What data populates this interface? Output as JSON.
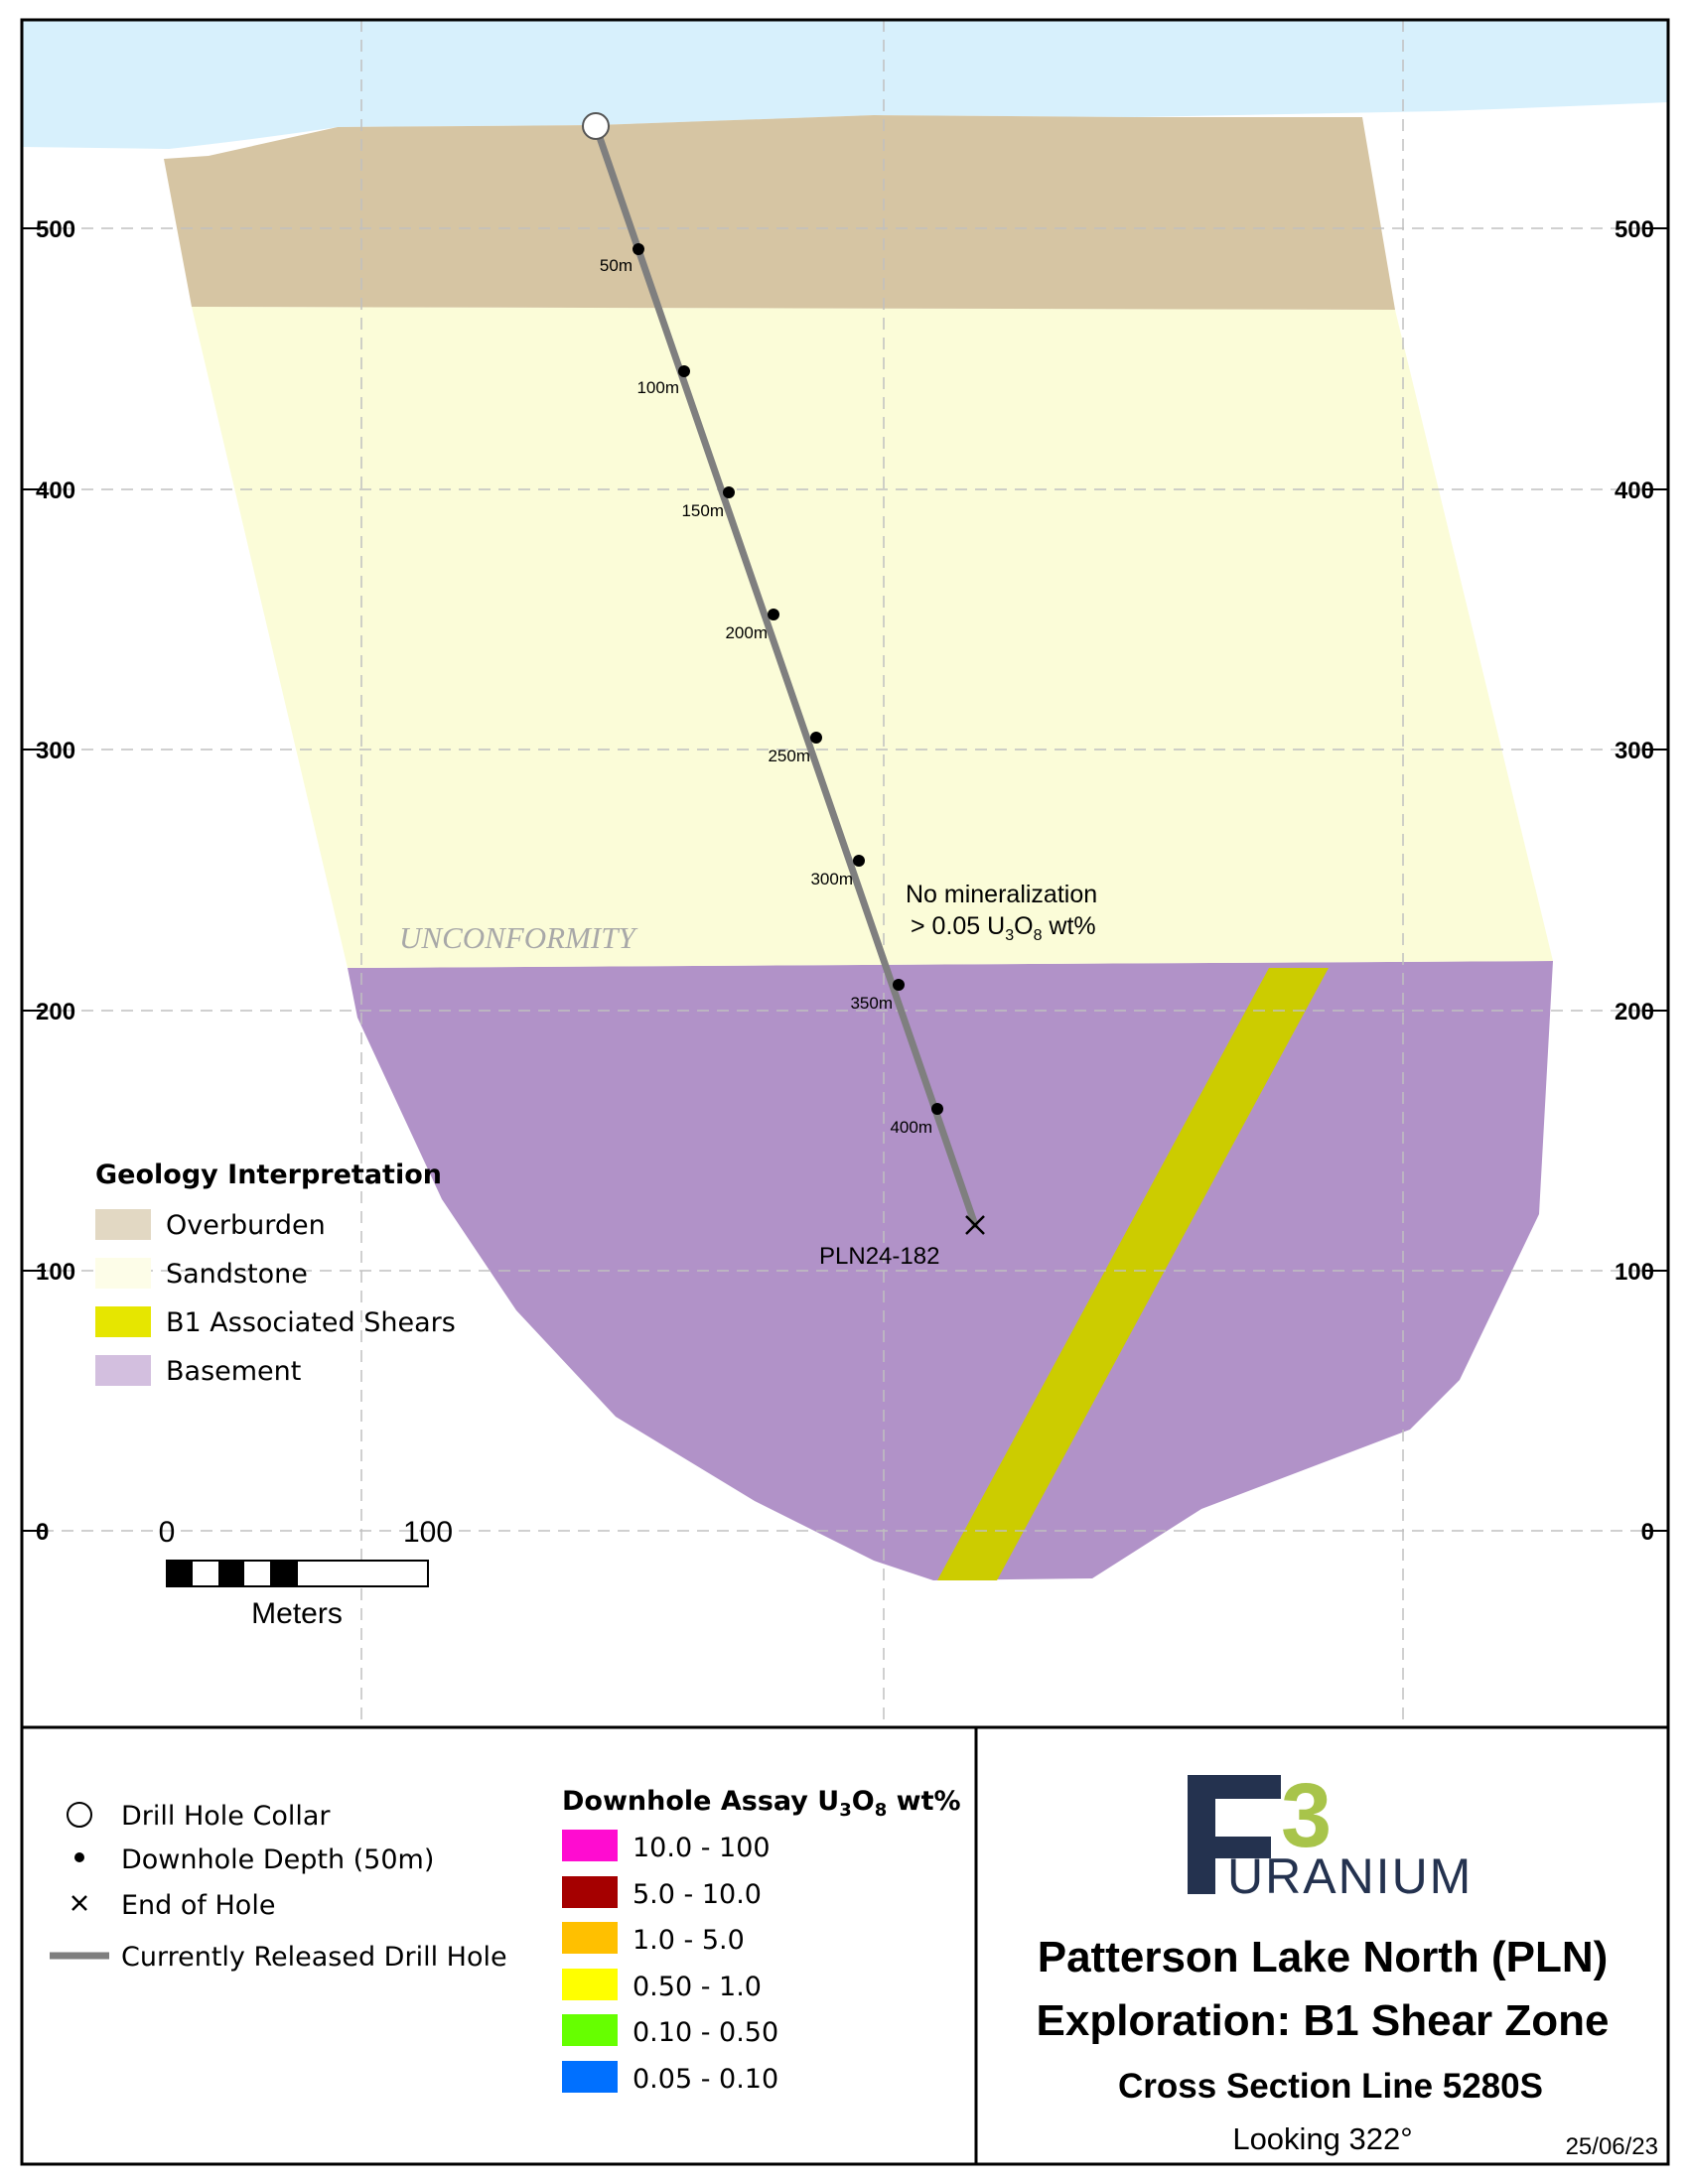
{
  "axis": {
    "elevation_ticks": [
      "500",
      "400",
      "300",
      "200",
      "100",
      "0"
    ]
  },
  "drill_hole": {
    "id": "PLN24-182",
    "depth_labels": [
      "50m",
      "100m",
      "150m",
      "200m",
      "250m",
      "300m",
      "350m",
      "400m"
    ]
  },
  "annotations": {
    "unconformity": "UNCONFORMITY",
    "no_mineral_line1": "No mineralization",
    "no_mineral_line2_prefix": "> 0.05 U",
    "no_mineral_sub1": "3",
    "no_mineral_mid": "O",
    "no_mineral_sub2": "8",
    "no_mineral_suffix": " wt%"
  },
  "geology_legend": {
    "title": "Geology Interpretation",
    "items": [
      {
        "label": "Overburden",
        "color": "#e2d8c3"
      },
      {
        "label": "Sandstone",
        "color": "#fdfde8"
      },
      {
        "label": "B1 Associated Shears",
        "color": "#e6e600"
      },
      {
        "label": "Basement",
        "color": "#d3bfdf"
      }
    ]
  },
  "scale_bar": {
    "start": "0",
    "end": "100",
    "unit": "Meters"
  },
  "symbol_legend": {
    "items": [
      {
        "label": "Drill Hole Collar",
        "icon": "collar-icon"
      },
      {
        "label": "Downhole Depth (50m)",
        "icon": "dot-icon"
      },
      {
        "label": "End of Hole",
        "icon": "cross-icon"
      },
      {
        "label": "Currently Released Drill Hole",
        "icon": "line-icon"
      }
    ]
  },
  "assay_legend": {
    "title_prefix": "Downhole Assay U",
    "title_sub1": "3",
    "title_mid": "O",
    "title_sub2": "8",
    "title_suffix": " wt%",
    "items": [
      {
        "label": "10.0 - 100",
        "color": "#ff0cd0"
      },
      {
        "label": "5.0 - 10.0",
        "color": "#a50000"
      },
      {
        "label": "1.0 - 5.0",
        "color": "#ffc000"
      },
      {
        "label": "0.50 - 1.0",
        "color": "#ffff00"
      },
      {
        "label": "0.10 - 0.50",
        "color": "#66ff00"
      },
      {
        "label": "0.05 - 0.10",
        "color": "#0070ff"
      }
    ]
  },
  "title_block": {
    "logo_letters": "F3",
    "logo_word": "URANIUM",
    "line1": "Patterson Lake North (PLN)",
    "line2": "Exploration: B1 Shear Zone",
    "line3": "Cross Section Line 5280S",
    "looking": "Looking 322°",
    "date": "25/06/23"
  },
  "colors": {
    "sky": "#d7f0fc",
    "overburden": "#d6c5a3",
    "sandstone": "#fbfcd8",
    "basement": "#b192c8",
    "shear": "#cccc00",
    "drillhole": "#7f7f7f",
    "logo_navy": "#24324f",
    "logo_green": "#a8c44a"
  }
}
